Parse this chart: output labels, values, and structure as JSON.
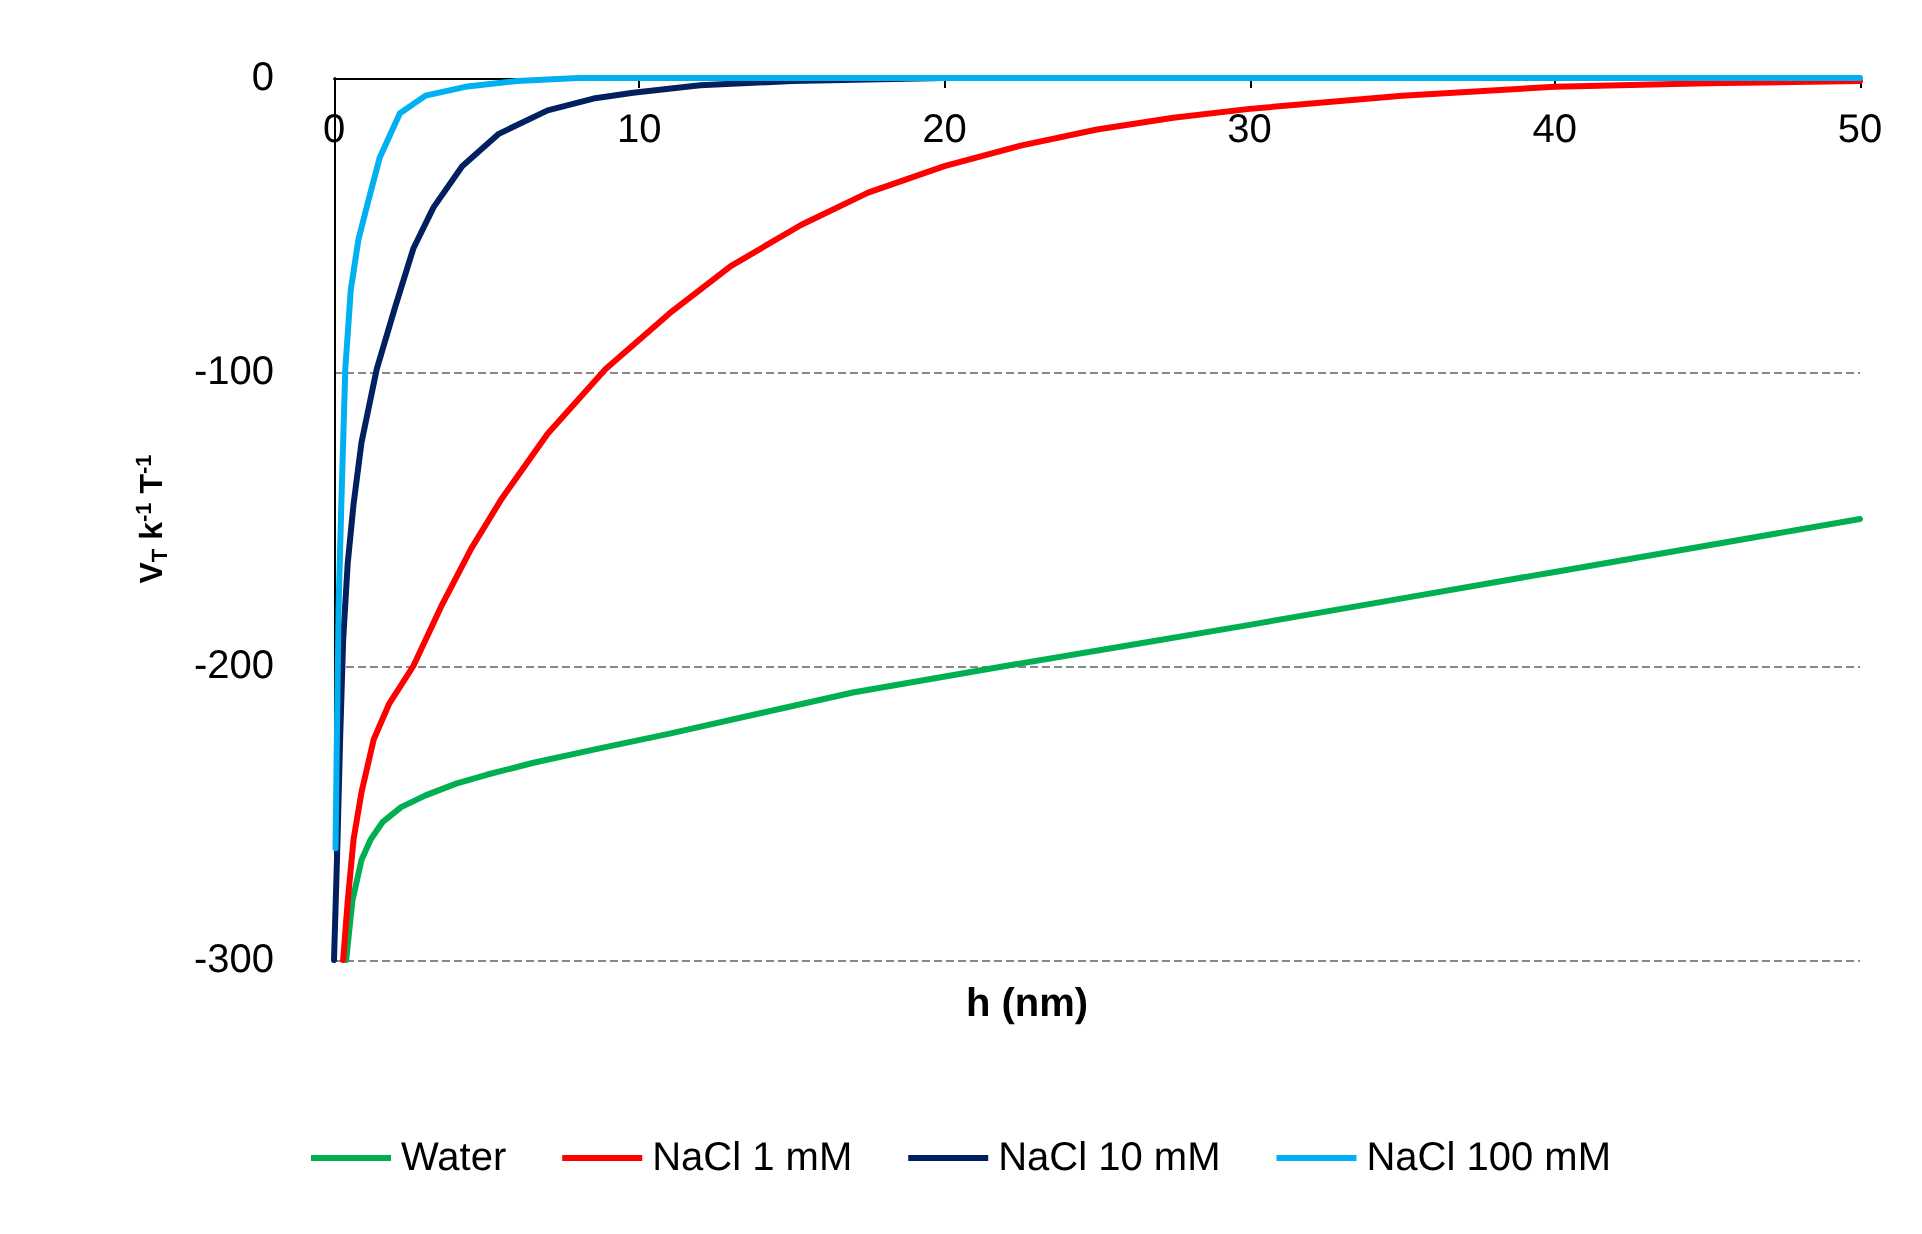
{
  "chart_data": {
    "type": "line",
    "xlabel": "h (nm)",
    "ylabel": "V$_{T}$ k$^{-1}$ T$^{-1}$",
    "xlim": [
      0,
      50
    ],
    "xticks": [
      0,
      10,
      20,
      30,
      40,
      50
    ],
    "ylim": [
      -300,
      0
    ],
    "yticks": [
      -300,
      -200,
      -100,
      0
    ],
    "grid": "y",
    "legend": "bottom",
    "marker": "none",
    "line_style": "solid",
    "series": [
      {
        "name": "Water",
        "color": "#00b050",
        "x": [
          0.4,
          0.6,
          0.9,
          1.2,
          1.6,
          2.2,
          3,
          4,
          5,
          6.5,
          8.7,
          11,
          14,
          17,
          22,
          26,
          30,
          35,
          40,
          45,
          50
        ],
        "values": [
          -300,
          -280,
          -266,
          -259,
          -253,
          -248,
          -244,
          -240,
          -237,
          -233,
          -228,
          -223,
          -216,
          -209,
          -200,
          -193,
          -186,
          -177,
          -168,
          -159,
          -150
        ]
      },
      {
        "name": "NaCl 1 mM",
        "color": "#ff0000",
        "x": [
          0.3,
          0.45,
          0.64,
          0.9,
          1.3,
          1.8,
          2.6,
          3.5,
          4.5,
          5.5,
          7,
          8.9,
          11,
          13,
          15.3,
          17.5,
          20,
          22.5,
          25,
          27.5,
          30,
          35,
          40,
          45,
          50
        ],
        "values": [
          -300,
          -280,
          -259,
          -243,
          -225,
          -213,
          -200,
          -180,
          -160,
          -143,
          -121,
          -99,
          -80,
          -64,
          -50,
          -39,
          -30,
          -23,
          -17.5,
          -13.5,
          -10.5,
          -6,
          -3,
          -1.8,
          -1
        ]
      },
      {
        "name": "NaCl 10 mM",
        "color": "#002060",
        "x": [
          0,
          0.1,
          0.2,
          0.3,
          0.45,
          0.64,
          0.9,
          1.4,
          2,
          2.6,
          3.26,
          4.2,
          5.4,
          7,
          8.5,
          9.8,
          12,
          15,
          20,
          30
        ],
        "values": [
          -300,
          -265,
          -225,
          -191,
          -165,
          -145,
          -124,
          -99,
          -78,
          -58,
          -44,
          -30,
          -19,
          -11,
          -7,
          -5,
          -2.5,
          -1,
          0,
          0
        ]
      },
      {
        "name": "NaCl 100 mM",
        "color": "#00b0f0",
        "x": [
          0.05,
          0.1,
          0.15,
          0.24,
          0.37,
          0.55,
          0.8,
          1.07,
          1.5,
          2.16,
          3,
          4.3,
          6,
          8,
          10,
          20,
          30,
          40,
          50
        ],
        "values": [
          -262,
          -220,
          -180,
          -145,
          -99,
          -72,
          -55,
          -44,
          -27,
          -12,
          -6,
          -3,
          -1,
          0,
          0,
          0,
          0,
          0,
          0
        ]
      }
    ]
  }
}
